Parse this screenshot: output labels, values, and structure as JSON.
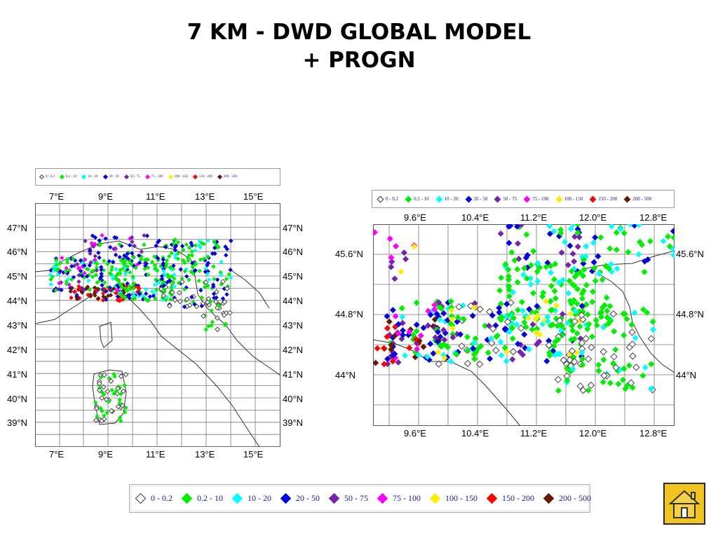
{
  "title": {
    "line1": "7 KM - DWD GLOBAL MODEL",
    "line2": "+ PROGN"
  },
  "legend": [
    {
      "label": "0 - 0.2",
      "color": "#ffffff",
      "stroke": "#333333"
    },
    {
      "label": "0.2 - 10",
      "color": "#00ee00"
    },
    {
      "label": "10 - 20",
      "color": "#00ffff"
    },
    {
      "label": "20 - 50",
      "color": "#0000dd"
    },
    {
      "label": "50 - 75",
      "color": "#7722aa"
    },
    {
      "label": "75 - 100",
      "color": "#ff00ff"
    },
    {
      "label": "100 - 150",
      "color": "#ffee00"
    },
    {
      "label": "150 - 200",
      "color": "#ff0000"
    },
    {
      "label": "200 - 500",
      "color": "#661a00"
    }
  ],
  "left_map": {
    "lon_labels": [
      "7°E",
      "9°E",
      "11°E",
      "13°E",
      "15°E"
    ],
    "lat_labels": [
      "47°N",
      "46°N",
      "45°N",
      "44°N",
      "43°N",
      "42°N",
      "41°N",
      "40°N",
      "39°N"
    ]
  },
  "right_map": {
    "lon_labels": [
      "9.6°E",
      "10.4°E",
      "11.2°E",
      "12.0°E",
      "12.8°E"
    ],
    "lat_labels": [
      "45.6°N",
      "44.8°N",
      "44°N"
    ]
  },
  "home_button": {
    "icon": "home-icon"
  }
}
